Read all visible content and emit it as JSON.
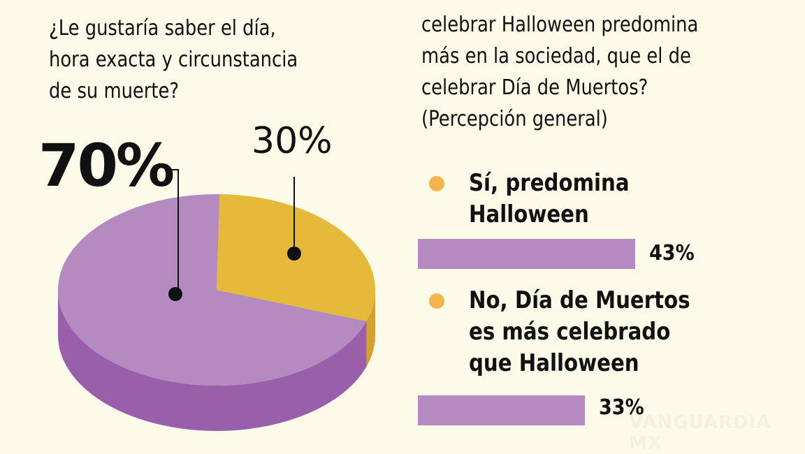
{
  "chart_data": [
    {
      "type": "pie",
      "title": "¿Le gustaría saber el día, hora exacta y circunstancia de su muerte?",
      "slices": [
        {
          "label": "70%",
          "value": 70,
          "color": "#b58ac0",
          "side_color": "#9a5faa"
        },
        {
          "label": "30%",
          "value": 30,
          "color": "#e6b93a",
          "side_color": "#d4a030"
        }
      ]
    },
    {
      "type": "bar",
      "title_lines": [
        "celebrar Halloween predomina",
        "más en la sociedad, que el de",
        "celebrar Día de Muertos?",
        "(Percepción general)"
      ],
      "categories": [
        {
          "lines": [
            "Sí, predomina",
            "Halloween"
          ]
        },
        {
          "lines": [
            "No, Día de Muertos",
            "es más celebrado",
            "que Halloween"
          ]
        }
      ],
      "values": [
        43,
        33
      ],
      "value_labels": [
        "43%",
        "33%"
      ],
      "bar_color": "#b58ac0",
      "bullet_color": "#f2b54e"
    }
  ],
  "q1_lines": [
    "¿Le gustaría saber el día,",
    "hora exacta y circunstancia",
    "de su muerte?"
  ],
  "watermark": "VANGUARDIA MX"
}
